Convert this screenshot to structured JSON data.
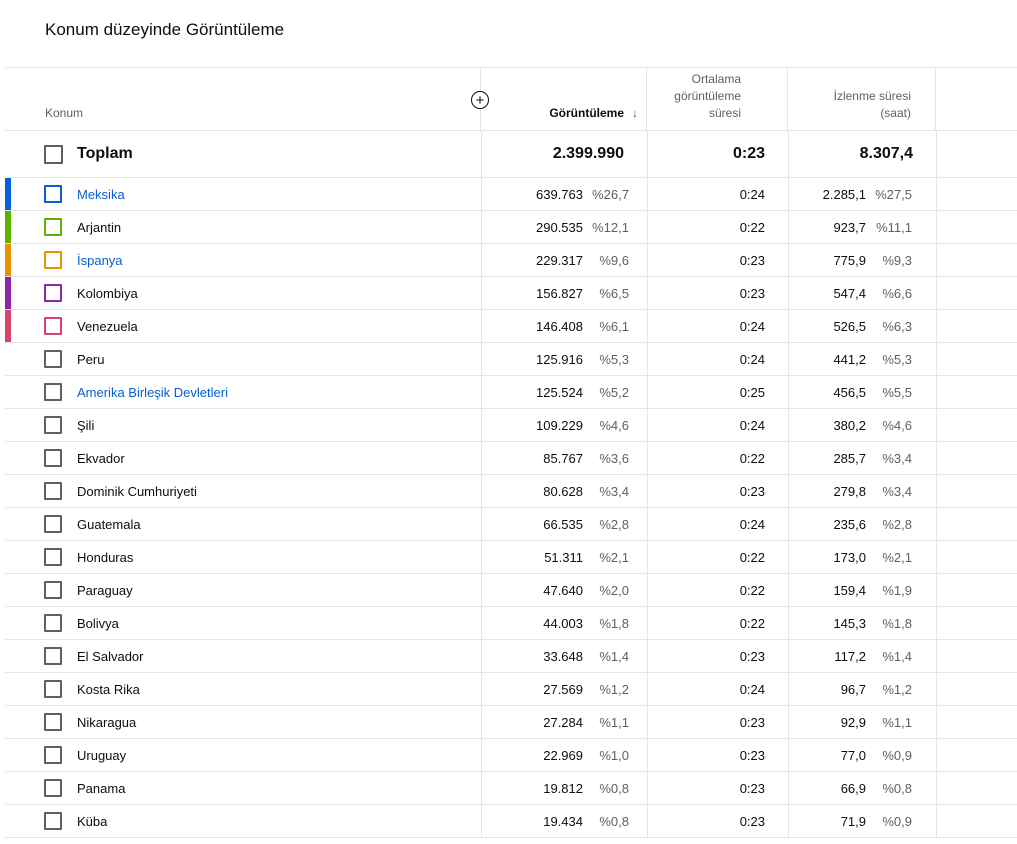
{
  "title": "Konum düzeyinde Görüntüleme",
  "headers": {
    "location": "Konum",
    "views": "Görüntüleme",
    "sort_icon": "arrow-down-icon",
    "avg_line1": "Ortalama",
    "avg_line2": "görüntüleme",
    "avg_line3": "süresi",
    "watch_line1": "İzlenme süresi",
    "watch_line2": "(saat)",
    "add_metric": "+"
  },
  "total": {
    "label": "Toplam",
    "views": "2.399.990",
    "avg": "0:23",
    "watch": "8.307,4"
  },
  "rows": [
    {
      "name": "Meksika",
      "views": "639.763",
      "views_pct": "%26,7",
      "avg": "0:24",
      "watch": "2.285,1",
      "watch_pct": "%27,5",
      "color": "#065fd4",
      "link": true
    },
    {
      "name": "Arjantin",
      "views": "290.535",
      "views_pct": "%12,1",
      "avg": "0:22",
      "watch": "923,7",
      "watch_pct": "%11,1",
      "color": "#5fb000",
      "link": false
    },
    {
      "name": "İspanya",
      "views": "229.317",
      "views_pct": "%9,6",
      "avg": "0:23",
      "watch": "775,9",
      "watch_pct": "%9,3",
      "color": "#e69500",
      "link": true
    },
    {
      "name": "Kolombiya",
      "views": "156.827",
      "views_pct": "%6,5",
      "avg": "0:23",
      "watch": "547,4",
      "watch_pct": "%6,6",
      "color": "#8e24aa",
      "link": false
    },
    {
      "name": "Venezuela",
      "views": "146.408",
      "views_pct": "%6,1",
      "avg": "0:24",
      "watch": "526,5",
      "watch_pct": "%6,3",
      "color": "#d7436a",
      "link": false
    },
    {
      "name": "Peru",
      "views": "125.916",
      "views_pct": "%5,3",
      "avg": "0:24",
      "watch": "441,2",
      "watch_pct": "%5,3"
    },
    {
      "name": "Amerika Birleşik Devletleri",
      "views": "125.524",
      "views_pct": "%5,2",
      "avg": "0:25",
      "watch": "456,5",
      "watch_pct": "%5,5",
      "link": true
    },
    {
      "name": "Şili",
      "views": "109.229",
      "views_pct": "%4,6",
      "avg": "0:24",
      "watch": "380,2",
      "watch_pct": "%4,6"
    },
    {
      "name": "Ekvador",
      "views": "85.767",
      "views_pct": "%3,6",
      "avg": "0:22",
      "watch": "285,7",
      "watch_pct": "%3,4"
    },
    {
      "name": "Dominik Cumhuriyeti",
      "views": "80.628",
      "views_pct": "%3,4",
      "avg": "0:23",
      "watch": "279,8",
      "watch_pct": "%3,4"
    },
    {
      "name": "Guatemala",
      "views": "66.535",
      "views_pct": "%2,8",
      "avg": "0:24",
      "watch": "235,6",
      "watch_pct": "%2,8"
    },
    {
      "name": "Honduras",
      "views": "51.311",
      "views_pct": "%2,1",
      "avg": "0:22",
      "watch": "173,0",
      "watch_pct": "%2,1"
    },
    {
      "name": "Paraguay",
      "views": "47.640",
      "views_pct": "%2,0",
      "avg": "0:22",
      "watch": "159,4",
      "watch_pct": "%1,9"
    },
    {
      "name": "Bolivya",
      "views": "44.003",
      "views_pct": "%1,8",
      "avg": "0:22",
      "watch": "145,3",
      "watch_pct": "%1,8"
    },
    {
      "name": "El Salvador",
      "views": "33.648",
      "views_pct": "%1,4",
      "avg": "0:23",
      "watch": "117,2",
      "watch_pct": "%1,4"
    },
    {
      "name": "Kosta Rika",
      "views": "27.569",
      "views_pct": "%1,2",
      "avg": "0:24",
      "watch": "96,7",
      "watch_pct": "%1,2"
    },
    {
      "name": "Nikaragua",
      "views": "27.284",
      "views_pct": "%1,1",
      "avg": "0:23",
      "watch": "92,9",
      "watch_pct": "%1,1"
    },
    {
      "name": "Uruguay",
      "views": "22.969",
      "views_pct": "%1,0",
      "avg": "0:23",
      "watch": "77,0",
      "watch_pct": "%0,9"
    },
    {
      "name": "Panama",
      "views": "19.812",
      "views_pct": "%0,8",
      "avg": "0:23",
      "watch": "66,9",
      "watch_pct": "%0,8"
    },
    {
      "name": "Küba",
      "views": "19.434",
      "views_pct": "%0,8",
      "avg": "0:23",
      "watch": "71,9",
      "watch_pct": "%0,9"
    }
  ]
}
